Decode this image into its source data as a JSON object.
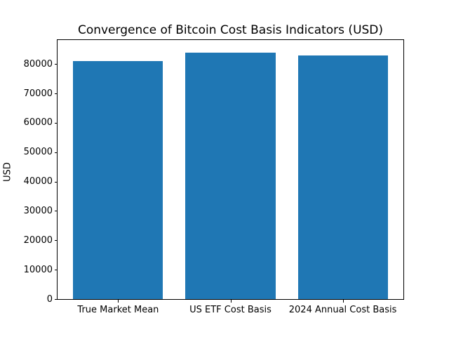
{
  "chart_data": {
    "type": "bar",
    "title": "Convergence of Bitcoin Cost Basis Indicators (USD)",
    "categories": [
      "True Market Mean",
      "US ETF Cost Basis",
      "2024 Annual Cost Basis"
    ],
    "values": [
      81000,
      84000,
      83000
    ],
    "xlabel": "",
    "ylabel": "USD",
    "ylim": [
      0,
      88200
    ],
    "yticks": [
      0,
      10000,
      20000,
      30000,
      40000,
      50000,
      60000,
      70000,
      80000
    ],
    "bar_color": "#1f77b4",
    "axis_color": "#000000",
    "grid": false,
    "legend": "none"
  }
}
